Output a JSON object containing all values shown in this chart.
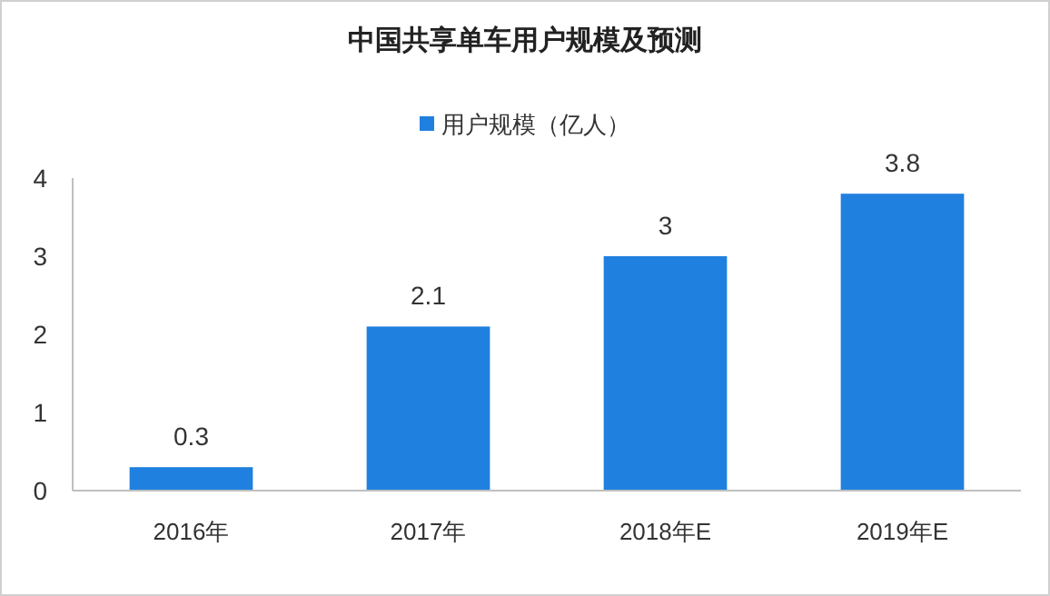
{
  "chart_data": {
    "type": "bar",
    "title": "中国共享单车用户规模及预测",
    "categories": [
      "2016年",
      "2017年",
      "2018年E",
      "2019年E"
    ],
    "series": [
      {
        "name": "用户规模（亿人）",
        "color": "#2080df",
        "values": [
          0.3,
          2.1,
          3,
          3.8
        ]
      }
    ],
    "ylim": [
      0,
      4
    ],
    "yticks": [
      0,
      1,
      2,
      3,
      4
    ],
    "grid": false,
    "legend": "top",
    "data_labels": true
  }
}
